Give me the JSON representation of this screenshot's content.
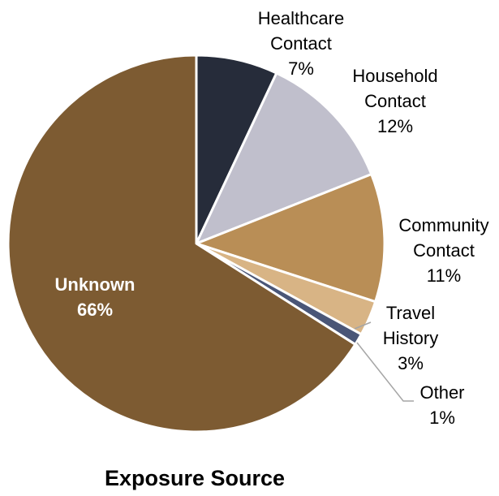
{
  "chart_data": {
    "type": "pie",
    "title": "Exposure Source",
    "slices": [
      {
        "name": "Healthcare Contact",
        "label_lines": [
          "Healthcare",
          "Contact"
        ],
        "value": 7,
        "value_label": "7%",
        "color": "#262c3a"
      },
      {
        "name": "Household Contact",
        "label_lines": [
          "Household",
          "Contact"
        ],
        "value": 12,
        "value_label": "12%",
        "color": "#c0bfcc"
      },
      {
        "name": "Community Contact",
        "label_lines": [
          "Community",
          "Contact"
        ],
        "value": 11,
        "value_label": "11%",
        "color": "#b98e56"
      },
      {
        "name": "Travel History",
        "label_lines": [
          "Travel",
          "History"
        ],
        "value": 3,
        "value_label": "3%",
        "color": "#d8b485"
      },
      {
        "name": "Other",
        "label_lines": [
          "Other"
        ],
        "value": 1,
        "value_label": "1%",
        "color": "#4a5677"
      },
      {
        "name": "Unknown",
        "label_lines": [
          "Unknown"
        ],
        "value": 66,
        "value_label": "66%",
        "color": "#7d5b32",
        "label_inside": true
      }
    ],
    "start_angle_deg": 0,
    "direction": "clockwise",
    "legend": "none",
    "data_labels": "outside with category name and percent"
  }
}
